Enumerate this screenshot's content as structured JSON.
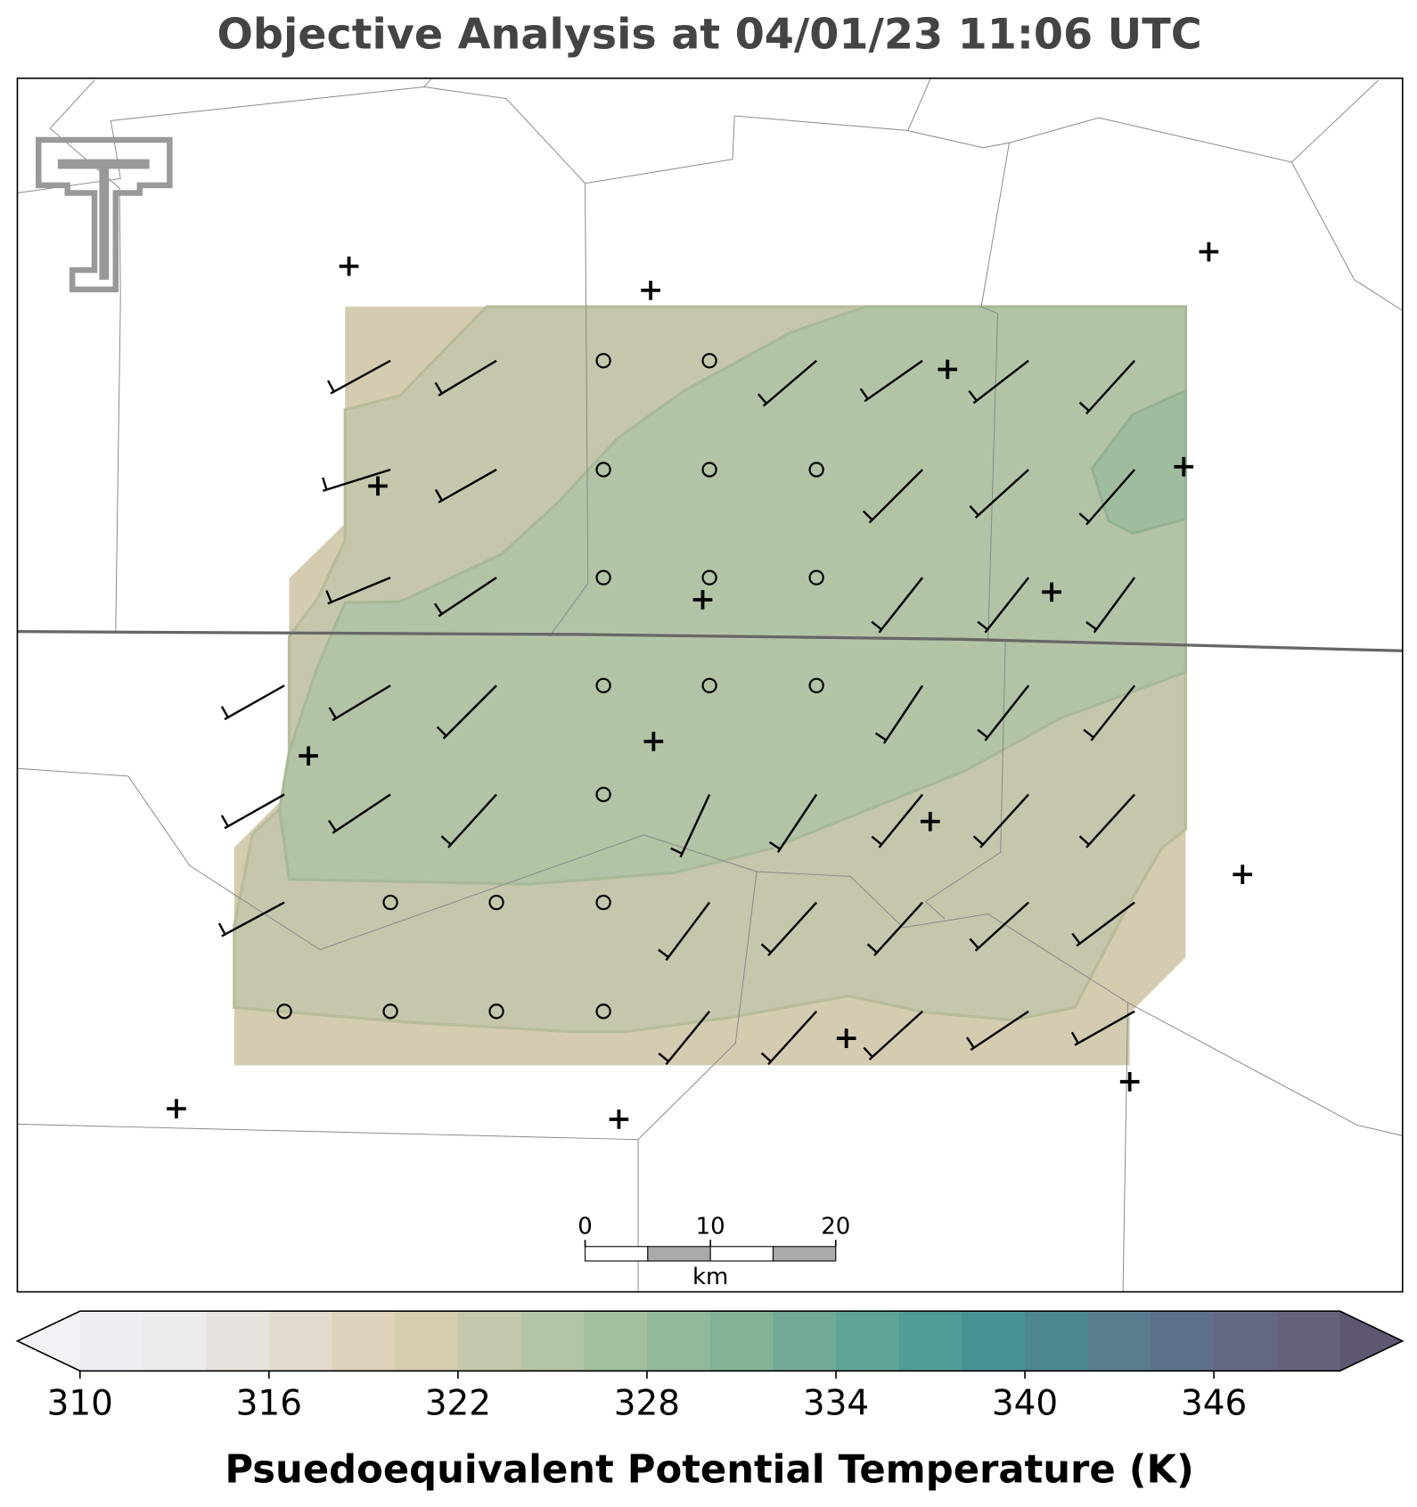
{
  "title": "Objective Analysis at 04/01/23 11:06 UTC",
  "colorbar": {
    "label": "Psuedoequivalent Potential Temperature (K)",
    "bounds": [
      310,
      312,
      314,
      316,
      318,
      320,
      322,
      324,
      326,
      328,
      330,
      332,
      334,
      336,
      338,
      340,
      342,
      344,
      346,
      348,
      350
    ],
    "colors": [
      "#f0eef2",
      "#eeebeb",
      "#e8e2de",
      "#e3dbce",
      "#dfd2bb",
      "#d4cdb0",
      "#c6c8ab",
      "#b4c4a6",
      "#a3bfa0",
      "#92b99a",
      "#82b397",
      "#70aa96",
      "#5ea597",
      "#4f9c96",
      "#479294",
      "#4d8792",
      "#587d8f",
      "#5f718a",
      "#646983",
      "#67627c"
    ],
    "under_color": "#f3f1f6",
    "over_color": "#5f5670",
    "ticks": [
      310,
      316,
      322,
      328,
      334,
      340,
      346
    ]
  },
  "scale_bar": {
    "ticks": [
      0,
      10,
      20
    ],
    "unit": "km"
  }
}
